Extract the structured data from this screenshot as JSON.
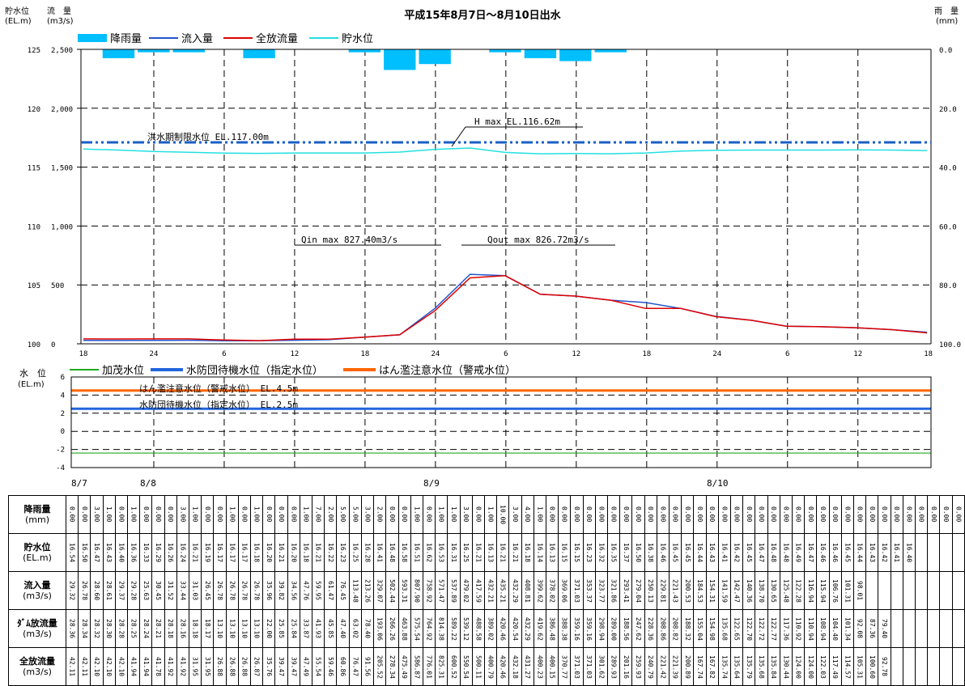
{
  "top_chart": {
    "title": "平成15年8月7日～8月10日出水",
    "left_axis_label_1": "貯水位",
    "left_axis_unit_1": "(EL.m)",
    "left_axis_label_2": "流　量",
    "left_axis_unit_2": "(m3/s)",
    "right_axis_label": "雨　量",
    "right_axis_unit": "(mm)",
    "legend": [
      {
        "label": "降雨量",
        "color": "#00bfff",
        "kind": "bar"
      },
      {
        "label": "流入量",
        "color": "#2255cc",
        "kind": "line"
      },
      {
        "label": "全放流量",
        "color": "#e00000",
        "kind": "line"
      },
      {
        "label": "貯水位",
        "color": "#22e0e0",
        "kind": "line"
      }
    ],
    "annotations": {
      "flood_limit": "洪水期制限水位 EL.117.00m",
      "hmax": "H max EL.116.62m",
      "qin_max": "Qin max 827.40m3/s",
      "qout_max": "Qout max 826.72m3/s"
    },
    "x_ticks": [
      "18",
      "24",
      "6",
      "12",
      "18",
      "24",
      "6",
      "12",
      "18",
      "24",
      "6",
      "12",
      "18"
    ],
    "left_level_ticks": [
      "125",
      "120",
      "115",
      "110",
      "105",
      "100"
    ],
    "flow_ticks": [
      "2,500",
      "2,000",
      "1,500",
      "1,000",
      "500",
      "0"
    ],
    "rain_ticks": [
      "0.0",
      "20.0",
      "40.0",
      "60.0",
      "80.0",
      "100.0"
    ]
  },
  "bottom_chart": {
    "axis_label": "水　位",
    "axis_unit": "(EL.m)",
    "legend": [
      {
        "label": "加茂水位",
        "color": "#22aa22"
      },
      {
        "label": "水防団待機水位（指定水位）",
        "color": "#2266dd"
      },
      {
        "label": "はん濫注意水位（警戒水位）",
        "color": "#ff6600"
      }
    ],
    "annotations": {
      "warning": "はん濫注意水位（警戒水位） EL.4.5m",
      "standby": "水防団待機水位（指定水位） EL.2.5m"
    },
    "y_ticks": [
      "6",
      "4",
      "2",
      "0",
      "-2",
      "-4"
    ],
    "dates": [
      "8/7",
      "8/8",
      "8/9",
      "8/10"
    ]
  },
  "chart_data": [
    {
      "type": "line",
      "title": "平成15年8月7日～8月10日出水",
      "x": [
        "8/7 18",
        "8/7 21",
        "8/8 0",
        "8/8 3",
        "8/8 6",
        "8/8 9",
        "8/8 12",
        "8/8 15",
        "8/8 18",
        "8/8 21",
        "8/9 0",
        "8/9 3",
        "8/9 6",
        "8/9 9",
        "8/9 12",
        "8/9 15",
        "8/9 18",
        "8/9 21",
        "8/10 0",
        "8/10 3",
        "8/10 6",
        "8/10 9",
        "8/10 12",
        "8/10 15",
        "8/10 18"
      ],
      "series": [
        {
          "name": "流入量",
          "axis": "flow",
          "values": [
            29,
            28,
            29,
            30,
            26,
            27,
            30,
            35,
            56,
            76,
            300,
            590,
            578,
            420,
            405,
            370,
            350,
            300,
            232,
            200,
            150,
            145,
            135,
            120,
            98
          ]
        },
        {
          "name": "全放流量",
          "axis": "flow",
          "values": [
            42,
            41,
            42,
            42,
            32,
            27,
            39,
            40,
            56,
            77,
            280,
            560,
            578,
            420,
            405,
            370,
            300,
            300,
            230,
            200,
            150,
            145,
            137,
            120,
            93
          ]
        },
        {
          "name": "貯水位",
          "axis": "level",
          "values": [
            116.54,
            116.45,
            116.33,
            116.26,
            116.19,
            116.17,
            116.2,
            116.2,
            116.2,
            116.28,
            116.51,
            116.62,
            116.25,
            116.13,
            116.16,
            116.13,
            116.2,
            116.37,
            116.43,
            116.45,
            116.45,
            116.45,
            116.46,
            116.45,
            116.4
          ]
        },
        {
          "name": "降雨量",
          "axis": "rain",
          "values": [
            0,
            3,
            1,
            1,
            0,
            3,
            0,
            0,
            1,
            7,
            5,
            0,
            1,
            3,
            4,
            1,
            0,
            0,
            0,
            0,
            0,
            0,
            0,
            0,
            0
          ]
        }
      ],
      "ylim_level": [
        100,
        125
      ],
      "ylim_flow": [
        0,
        2500
      ],
      "ylim_rain": [
        0,
        100
      ],
      "reference_lines": [
        {
          "label": "洪水期制限水位 EL.117.00m",
          "value": 117.0
        }
      ],
      "annotations": [
        "H max EL.116.62m",
        "Qin max 827.40m3/s",
        "Qout max 826.72m3/s"
      ],
      "grid": true
    },
    {
      "type": "line",
      "x": [
        "8/7 18",
        "8/10 18"
      ],
      "series": [
        {
          "name": "加茂水位",
          "values": [
            -2.4,
            -2.4
          ]
        },
        {
          "name": "水防団待機水位（指定水位）",
          "values": [
            2.5,
            2.5
          ]
        },
        {
          "name": "はん濫注意水位（警戒水位）",
          "values": [
            4.5,
            4.5
          ]
        }
      ],
      "ylim": [
        -4,
        6
      ],
      "grid": true
    }
  ],
  "table": {
    "row_labels": [
      [
        "降雨量",
        "(mm)"
      ],
      [
        "貯水位",
        "(EL.m)"
      ],
      [
        "流入量",
        "(m3/s)"
      ],
      [
        "ﾀﾞﾑ放流量",
        "(m3/s)"
      ],
      [
        "全放流量",
        "(m3/s)"
      ]
    ],
    "rows": [
      [
        "0.00",
        "0.00",
        "3.00",
        "1.00",
        "0.00",
        "1.00",
        "0.00",
        "0.00",
        "0.00",
        "3.00",
        "1.00",
        "0.00",
        "0.00",
        "1.00",
        "0.00",
        "1.00",
        "0.00",
        "0.00",
        "0.00",
        "1.00",
        "7.00",
        "2.00",
        "5.00",
        "5.00",
        "3.00",
        "2.00",
        "0.00",
        "0.00",
        "1.00",
        "0.00",
        "1.00",
        "1.00",
        "3.00",
        "0.00",
        "1.00",
        "10.00",
        "3.00",
        "4.00",
        "1.00",
        "0.00",
        "0.00",
        "0.00",
        "0.00",
        "0.00",
        "0.00",
        "0.00",
        "0.00",
        "0.00",
        "0.00",
        "0.00",
        "0.00",
        "0.00",
        "0.00",
        "0.00",
        "0.00",
        "0.00",
        "0.00",
        "0.00",
        "0.00",
        "0.00",
        "0.00",
        "0.00",
        "0.00",
        "0.00",
        "0.00",
        "0.00",
        "0.00",
        "0.00",
        "0.00",
        "0.00",
        "0.00",
        "0.00",
        "0.00"
      ],
      [
        "16.54",
        "16.50",
        "16.47",
        "16.43",
        "16.40",
        "16.36",
        "16.33",
        "16.29",
        "16.26",
        "16.24",
        "16.21",
        "16.19",
        "16.17",
        "16.17",
        "16.17",
        "16.18",
        "16.20",
        "16.21",
        "16.20",
        "16.18",
        "16.21",
        "16.22",
        "16.23",
        "16.25",
        "16.28",
        "16.41",
        "16.48",
        "16.58",
        "16.51",
        "16.62",
        "16.53",
        "16.31",
        "16.25",
        "16.21",
        "16.13",
        "16.21",
        "16.21",
        "16.18",
        "16.14",
        "16.13",
        "16.15",
        "16.15",
        "16.23",
        "16.32",
        "16.35",
        "16.37",
        "16.50",
        "16.38",
        "16.46",
        "16.45",
        "16.45",
        "16.44",
        "16.43",
        "16.41",
        "16.42",
        "16.45",
        "16.47",
        "16.48",
        "16.48",
        "16.49",
        "16.47",
        "16.46",
        "16.46",
        "16.45",
        "16.44",
        "16.43",
        "16.42",
        "16.41",
        "16.40"
      ],
      [
        "29.32",
        "26.78",
        "28.60",
        "28.61",
        "29.37",
        "29.28",
        "25.63",
        "30.45",
        "31.52",
        "33.44",
        "31.03",
        "26.45",
        "26.78",
        "26.78",
        "26.78",
        "26.78",
        "35.96",
        "39.82",
        "34.56",
        "47.76",
        "59.95",
        "61.47",
        "76.45",
        "113.48",
        "213.26",
        "329.07",
        "502.44",
        "593.31",
        "807.90",
        "758.92",
        "571.47",
        "537.89",
        "479.02",
        "417.59",
        "432.21",
        "435.21",
        "432.29",
        "408.81",
        "399.62",
        "378.02",
        "369.06",
        "371.03",
        "353.37",
        "323.77",
        "321.86",
        "293.41",
        "279.04",
        "250.13",
        "229.81",
        "221.43",
        "200.53",
        "184.53",
        "154.31",
        "141.59",
        "142.47",
        "140.36",
        "138.70",
        "130.65",
        "125.48",
        "122.28",
        "116.94",
        "115.94",
        "106.76",
        "101.31",
        "98.01"
      ],
      [
        "28.36",
        "28.34",
        "28.32",
        "28.30",
        "28.28",
        "28.25",
        "28.24",
        "28.21",
        "28.18",
        "28.16",
        "18.18",
        "18.17",
        "13.10",
        "13.10",
        "13.10",
        "13.10",
        "22.00",
        "25.85",
        "25.84",
        "33.87",
        "41.93",
        "45.85",
        "47.40",
        "63.02",
        "78.40",
        "193.06",
        "266.26",
        "463.88",
        "575.54",
        "764.92",
        "814.38",
        "589.22",
        "539.12",
        "488.58",
        "389.02",
        "420.46",
        "420.54",
        "432.29",
        "419.62",
        "386.48",
        "388.38",
        "359.16",
        "359.16",
        "298.94",
        "289.00",
        "188.56",
        "247.62",
        "228.36",
        "208.86",
        "208.82",
        "188.32",
        "155.04",
        "154.98",
        "135.68",
        "122.65",
        "122.70",
        "122.72",
        "122.77",
        "117.36",
        "110.92",
        "110.94",
        "108.94",
        "104.40",
        "101.34",
        "92.08",
        "87.36",
        "79.40"
      ],
      [
        "42.11",
        "42.11",
        "42.10",
        "42.10",
        "42.10",
        "41.94",
        "41.94",
        "41.78",
        "41.92",
        "41.92",
        "31.95",
        "31.95",
        "26.88",
        "26.88",
        "26.88",
        "26.87",
        "35.76",
        "39.47",
        "39.47",
        "47.49",
        "55.54",
        "59.46",
        "60.86",
        "76.47",
        "91.56",
        "205.52",
        "278.34",
        "475.49",
        "586.87",
        "776.01",
        "825.31",
        "600.52",
        "550.54",
        "500.11",
        "400.79",
        "420.46",
        "432.18",
        "431.27",
        "400.23",
        "400.15",
        "370.77",
        "371.03",
        "371.03",
        "301.62",
        "289.93",
        "201.16",
        "259.93",
        "240.79",
        "221.42",
        "221.39",
        "200.89",
        "167.74",
        "167.82",
        "135.74",
        "135.64",
        "135.79",
        "135.68",
        "135.84",
        "130.44",
        "124.00",
        "124.00",
        "122.03",
        "117.49",
        "114.57",
        "105.31",
        "100.60",
        "92.78"
      ]
    ]
  }
}
